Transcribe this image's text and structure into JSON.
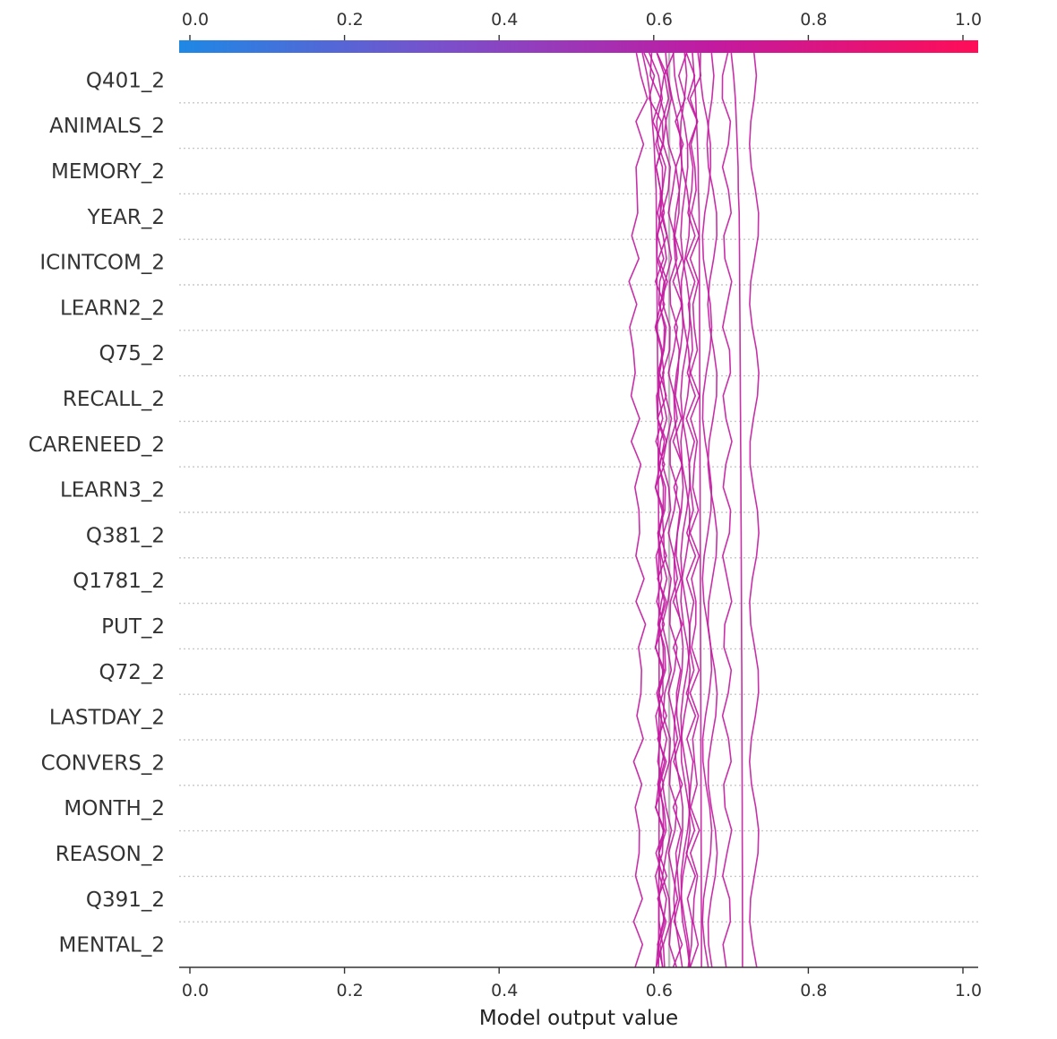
{
  "chart_data": {
    "type": "line",
    "xlabel": "Model output value",
    "xlim": [
      0.0,
      1.0
    ],
    "x_ticks": [
      "0.0",
      "0.2",
      "0.4",
      "0.6",
      "0.8",
      "1.0"
    ],
    "base_value": 0.62,
    "features": [
      "Q401_2",
      "ANIMALS_2",
      "MEMORY_2",
      "YEAR_2",
      "ICINTCOM_2",
      "LEARN2_2",
      "Q75_2",
      "RECALL_2",
      "CARENEED_2",
      "LEARN3_2",
      "Q381_2",
      "Q1781_2",
      "PUT_2",
      "Q72_2",
      "LASTDAY_2",
      "CONVERS_2",
      "MONTH_2",
      "REASON_2",
      "Q391_2",
      "MENTAL_2"
    ],
    "colorbar": {
      "colors": [
        "#1e88e5",
        "#7b4fcb",
        "#c21aa0",
        "#ff0d57"
      ]
    },
    "line_color": "#c21aa0",
    "series": [
      {
        "values": [
          0.575,
          0.588,
          0.586,
          0.583,
          0.582,
          0.58,
          0.578,
          0.577,
          0.576,
          0.575,
          0.574,
          0.573,
          0.572,
          0.573,
          0.574,
          0.575,
          0.576,
          0.577,
          0.578,
          0.579,
          0.58,
          0.58,
          0.581,
          0.582,
          0.583,
          0.584,
          0.584,
          0.583,
          0.582,
          0.582,
          0.581,
          0.58,
          0.579,
          0.58,
          0.58,
          0.58,
          0.58,
          0.58,
          0.58,
          0.58,
          0.58
        ]
      },
      {
        "values": [
          0.59,
          0.596,
          0.6,
          0.604,
          0.607,
          0.609,
          0.611,
          0.612,
          0.612,
          0.612,
          0.612,
          0.612,
          0.612,
          0.612,
          0.611,
          0.611,
          0.611,
          0.611,
          0.611,
          0.611,
          0.611,
          0.611,
          0.611,
          0.611,
          0.611,
          0.611,
          0.611,
          0.611,
          0.611,
          0.611,
          0.611,
          0.611,
          0.611,
          0.611,
          0.611,
          0.611,
          0.611,
          0.611,
          0.611,
          0.611,
          0.611
        ]
      },
      {
        "values": [
          0.61,
          0.615,
          0.618,
          0.62,
          0.622,
          0.623,
          0.624,
          0.625,
          0.625,
          0.625,
          0.625,
          0.625,
          0.625,
          0.625,
          0.625,
          0.625,
          0.625,
          0.625,
          0.625,
          0.625,
          0.625,
          0.625,
          0.625,
          0.625,
          0.625,
          0.625,
          0.625,
          0.625,
          0.625,
          0.625,
          0.625,
          0.625,
          0.625,
          0.625,
          0.625,
          0.625,
          0.625,
          0.625,
          0.625,
          0.625,
          0.625
        ]
      },
      {
        "values": [
          0.63,
          0.633,
          0.635,
          0.637,
          0.638,
          0.639,
          0.64,
          0.641,
          0.641,
          0.641,
          0.641,
          0.641,
          0.641,
          0.641,
          0.641,
          0.641,
          0.641,
          0.641,
          0.641,
          0.641,
          0.641,
          0.641,
          0.641,
          0.641,
          0.641,
          0.641,
          0.641,
          0.641,
          0.641,
          0.641,
          0.641,
          0.641,
          0.641,
          0.641,
          0.641,
          0.641,
          0.641,
          0.641,
          0.641,
          0.641,
          0.641
        ]
      },
      {
        "values": [
          0.65,
          0.652,
          0.654,
          0.655,
          0.656,
          0.657,
          0.657,
          0.658,
          0.658,
          0.658,
          0.658,
          0.658,
          0.658,
          0.658,
          0.658,
          0.658,
          0.658,
          0.658,
          0.658,
          0.658,
          0.658,
          0.658,
          0.658,
          0.658,
          0.658,
          0.658,
          0.658,
          0.658,
          0.658,
          0.658,
          0.658,
          0.658,
          0.658,
          0.658,
          0.658,
          0.658,
          0.658,
          0.658,
          0.658,
          0.658,
          0.658
        ]
      },
      {
        "values": [
          0.67,
          0.672,
          0.673,
          0.674,
          0.675,
          0.675,
          0.676,
          0.676,
          0.676,
          0.676,
          0.676,
          0.676,
          0.676,
          0.676,
          0.676,
          0.676,
          0.676,
          0.676,
          0.676,
          0.676,
          0.676,
          0.676,
          0.676,
          0.676,
          0.676,
          0.676,
          0.676,
          0.676,
          0.676,
          0.676,
          0.676,
          0.676,
          0.676,
          0.676,
          0.676,
          0.676,
          0.676,
          0.676,
          0.676,
          0.676,
          0.676
        ]
      },
      {
        "values": [
          0.62,
          0.616,
          0.613,
          0.611,
          0.61,
          0.609,
          0.608,
          0.608,
          0.608,
          0.608,
          0.608,
          0.608,
          0.608,
          0.608,
          0.608,
          0.608,
          0.608,
          0.608,
          0.608,
          0.608,
          0.608,
          0.608,
          0.608,
          0.608,
          0.608,
          0.608,
          0.608,
          0.608,
          0.608,
          0.608,
          0.608,
          0.608,
          0.608,
          0.608,
          0.608,
          0.608,
          0.608,
          0.608,
          0.608,
          0.608,
          0.608
        ]
      },
      {
        "values": [
          0.64,
          0.637,
          0.635,
          0.634,
          0.633,
          0.632,
          0.632,
          0.631,
          0.631,
          0.631,
          0.631,
          0.631,
          0.631,
          0.631,
          0.631,
          0.631,
          0.631,
          0.631,
          0.631,
          0.631,
          0.631,
          0.631,
          0.631,
          0.631,
          0.631,
          0.631,
          0.631,
          0.631,
          0.631,
          0.631,
          0.631,
          0.631,
          0.631,
          0.631,
          0.631,
          0.631,
          0.631,
          0.631,
          0.631,
          0.631,
          0.631
        ]
      },
      {
        "values": [
          0.66,
          0.656,
          0.653,
          0.651,
          0.65,
          0.649,
          0.648,
          0.648,
          0.648,
          0.648,
          0.648,
          0.648,
          0.648,
          0.648,
          0.648,
          0.648,
          0.648,
          0.648,
          0.648,
          0.648,
          0.648,
          0.648,
          0.648,
          0.648,
          0.648,
          0.648,
          0.648,
          0.648,
          0.648,
          0.648,
          0.648,
          0.648,
          0.648,
          0.648,
          0.648,
          0.648,
          0.648,
          0.648,
          0.648,
          0.648,
          0.648
        ]
      },
      {
        "values": [
          0.6,
          0.604,
          0.606,
          0.608,
          0.609,
          0.61,
          0.61,
          0.611,
          0.611,
          0.611,
          0.611,
          0.611,
          0.611,
          0.611,
          0.611,
          0.611,
          0.611,
          0.611,
          0.611,
          0.611,
          0.611,
          0.611,
          0.611,
          0.611,
          0.611,
          0.611,
          0.611,
          0.611,
          0.611,
          0.611,
          0.611,
          0.611,
          0.611,
          0.611,
          0.611,
          0.611,
          0.611,
          0.611,
          0.611,
          0.611,
          0.611
        ]
      },
      {
        "values": [
          0.62,
          0.624,
          0.627,
          0.629,
          0.63,
          0.631,
          0.632,
          0.632,
          0.632,
          0.632,
          0.632,
          0.632,
          0.632,
          0.632,
          0.632,
          0.632,
          0.632,
          0.632,
          0.632,
          0.632,
          0.632,
          0.632,
          0.632,
          0.632,
          0.632,
          0.632,
          0.632,
          0.632,
          0.632,
          0.632,
          0.632,
          0.632,
          0.632,
          0.632,
          0.632,
          0.632,
          0.632,
          0.632,
          0.632,
          0.632,
          0.632
        ]
      },
      {
        "values": [
          0.7,
          0.703,
          0.705,
          0.706,
          0.707,
          0.708,
          0.708,
          0.709,
          0.709,
          0.709,
          0.709,
          0.709,
          0.709,
          0.709,
          0.709,
          0.709,
          0.709,
          0.709,
          0.709,
          0.709,
          0.709,
          0.709,
          0.709,
          0.709,
          0.709,
          0.709,
          0.709,
          0.709,
          0.709,
          0.709,
          0.709,
          0.709,
          0.709,
          0.709,
          0.709,
          0.709,
          0.709,
          0.709,
          0.709,
          0.709,
          0.709
        ]
      },
      {
        "values": [
          0.725,
          0.727,
          0.728,
          0.729,
          0.73,
          0.73,
          0.73,
          0.73,
          0.73,
          0.73,
          0.73,
          0.73,
          0.73,
          0.73,
          0.73,
          0.73,
          0.73,
          0.73,
          0.73,
          0.73,
          0.73,
          0.73,
          0.73,
          0.73,
          0.73,
          0.73,
          0.73,
          0.73,
          0.73,
          0.73,
          0.73,
          0.73,
          0.73,
          0.73,
          0.73,
          0.73,
          0.73,
          0.73,
          0.73,
          0.73,
          0.73
        ]
      },
      {
        "values": [
          0.69,
          0.692,
          0.693,
          0.694,
          0.695,
          0.695,
          0.695,
          0.695,
          0.695,
          0.695,
          0.695,
          0.695,
          0.695,
          0.695,
          0.695,
          0.695,
          0.695,
          0.695,
          0.695,
          0.695,
          0.695,
          0.695,
          0.695,
          0.695,
          0.695,
          0.695,
          0.695,
          0.695,
          0.695,
          0.695,
          0.695,
          0.695,
          0.695,
          0.695,
          0.695,
          0.695,
          0.695,
          0.695,
          0.695,
          0.695,
          0.695
        ]
      },
      {
        "values": [
          0.595,
          0.6,
          0.603,
          0.605,
          0.606,
          0.607,
          0.607,
          0.608,
          0.608,
          0.608,
          0.608,
          0.608,
          0.608,
          0.608,
          0.608,
          0.608,
          0.608,
          0.608,
          0.608,
          0.608,
          0.608,
          0.608,
          0.608,
          0.608,
          0.608,
          0.608,
          0.608,
          0.608,
          0.608,
          0.608,
          0.608,
          0.608,
          0.608,
          0.608,
          0.608,
          0.608,
          0.608,
          0.608,
          0.608,
          0.608,
          0.608
        ]
      },
      {
        "values": [
          0.645,
          0.648,
          0.65,
          0.651,
          0.652,
          0.652,
          0.653,
          0.653,
          0.653,
          0.653,
          0.653,
          0.653,
          0.653,
          0.653,
          0.653,
          0.653,
          0.653,
          0.653,
          0.653,
          0.653,
          0.653,
          0.653,
          0.653,
          0.653,
          0.653,
          0.653,
          0.653,
          0.653,
          0.653,
          0.653,
          0.653,
          0.653,
          0.653,
          0.653,
          0.653,
          0.653,
          0.653,
          0.653,
          0.653,
          0.653,
          0.653
        ]
      },
      {
        "values": [
          0.61,
          0.612,
          0.614,
          0.615,
          0.616,
          0.616,
          0.617,
          0.617,
          0.617,
          0.617,
          0.617,
          0.617,
          0.617,
          0.617,
          0.617,
          0.617,
          0.617,
          0.617,
          0.617,
          0.617,
          0.617,
          0.617,
          0.617,
          0.617,
          0.617,
          0.617,
          0.617,
          0.617,
          0.617,
          0.617,
          0.617,
          0.617,
          0.617,
          0.617,
          0.617,
          0.617,
          0.617,
          0.617,
          0.617,
          0.617,
          0.617
        ]
      },
      {
        "values": [
          0.665,
          0.666,
          0.667,
          0.668,
          0.668,
          0.668,
          0.669,
          0.669,
          0.669,
          0.669,
          0.669,
          0.669,
          0.669,
          0.669,
          0.669,
          0.669,
          0.669,
          0.669,
          0.669,
          0.669,
          0.669,
          0.669,
          0.669,
          0.669,
          0.669,
          0.669,
          0.669,
          0.669,
          0.669,
          0.669,
          0.669,
          0.669,
          0.669,
          0.669,
          0.669,
          0.669,
          0.669,
          0.669,
          0.669,
          0.669,
          0.669
        ]
      },
      {
        "values": [
          0.585,
          0.591,
          0.595,
          0.597,
          0.599,
          0.6,
          0.601,
          0.601,
          0.601,
          0.601,
          0.601,
          0.601,
          0.601,
          0.601,
          0.601,
          0.601,
          0.601,
          0.601,
          0.601,
          0.601,
          0.601,
          0.601,
          0.601,
          0.601,
          0.601,
          0.601,
          0.601,
          0.601,
          0.601,
          0.601,
          0.601,
          0.601,
          0.601,
          0.601,
          0.601,
          0.601,
          0.601,
          0.601,
          0.601,
          0.601,
          0.601
        ]
      },
      {
        "values": [
          0.635,
          0.637,
          0.638,
          0.639,
          0.64,
          0.64,
          0.641,
          0.641,
          0.641,
          0.641,
          0.641,
          0.641,
          0.641,
          0.641,
          0.641,
          0.641,
          0.641,
          0.641,
          0.641,
          0.641,
          0.641,
          0.641,
          0.641,
          0.641,
          0.641,
          0.641,
          0.641,
          0.641,
          0.641,
          0.641,
          0.641,
          0.641,
          0.641,
          0.641,
          0.641,
          0.641,
          0.641,
          0.641,
          0.641,
          0.641,
          0.641
        ]
      }
    ]
  }
}
